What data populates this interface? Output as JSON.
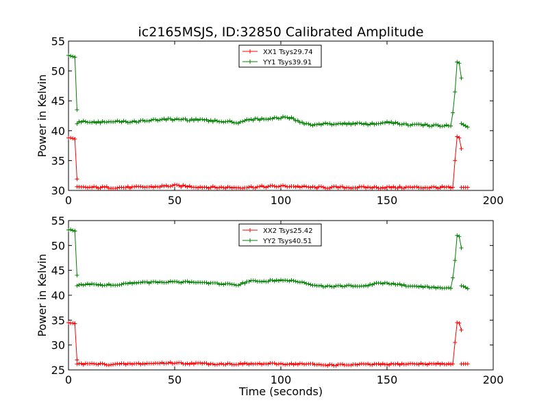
{
  "figure": {
    "title": "ic2165MSJS, ID:32850 Calibrated Amplitude"
  },
  "chart_data": [
    {
      "type": "line",
      "title": "ic2165MSJS, ID:32850 Calibrated Amplitude",
      "xlabel": "",
      "ylabel": "Power in Kelvin",
      "xlim": [
        0,
        200
      ],
      "ylim": [
        30,
        55
      ],
      "xticks": [
        0,
        50,
        100,
        150,
        200
      ],
      "yticks": [
        30,
        35,
        40,
        45,
        50,
        55
      ],
      "grid": false,
      "legend_position": "top-center",
      "marker": "plus",
      "sample_interval_s": 1,
      "series": [
        {
          "name": "XX1 Tsys29.74",
          "color": "#ff0000",
          "segments": [
            {
              "x": [
                0,
                1,
                2,
                3
              ],
              "y": [
                38.8,
                38.8,
                38.7,
                38.6
              ]
            },
            {
              "x": [
                3,
                4
              ],
              "y": [
                38.6,
                31.9
              ]
            },
            {
              "x": [
                4,
                12,
                20,
                30,
                40,
                50,
                55,
                60,
                70,
                80,
                90,
                100,
                105,
                110,
                115,
                120,
                130,
                140,
                150,
                160,
                170,
                180
              ],
              "y": [
                30.5,
                30.5,
                30.5,
                30.5,
                30.6,
                30.8,
                30.7,
                30.6,
                30.5,
                30.5,
                30.6,
                30.7,
                30.7,
                30.6,
                30.5,
                30.5,
                30.5,
                30.5,
                30.5,
                30.5,
                30.5,
                30.5
              ]
            },
            {
              "x": [
                180,
                181,
                182,
                183,
                184,
                185
              ],
              "y": [
                30.4,
                30.5,
                35.0,
                39.0,
                38.8,
                37.0
              ]
            },
            {
              "x": [
                185,
                186,
                187,
                188
              ],
              "y": [
                30.5,
                30.5,
                30.5,
                30.5
              ]
            }
          ]
        },
        {
          "name": "YY1 Tsys39.91",
          "color": "#008000",
          "segments": [
            {
              "x": [
                0,
                1,
                2,
                3
              ],
              "y": [
                52.6,
                52.5,
                52.4,
                52.3
              ]
            },
            {
              "x": [
                3,
                4
              ],
              "y": [
                52.3,
                43.5
              ]
            },
            {
              "x": [
                4,
                8,
                15,
                20,
                30,
                40,
                50,
                60,
                70,
                80,
                85,
                90,
                100,
                105,
                110,
                115,
                120,
                130,
                140,
                145,
                150,
                160,
                170,
                180
              ],
              "y": [
                41.3,
                41.6,
                41.4,
                41.5,
                41.5,
                41.8,
                41.9,
                41.8,
                41.6,
                41.4,
                41.9,
                41.9,
                42.2,
                42.1,
                41.3,
                41.0,
                41.1,
                41.2,
                41.1,
                41.2,
                41.4,
                41.0,
                40.9,
                40.8
              ]
            },
            {
              "x": [
                180,
                181,
                182,
                183,
                184,
                185
              ],
              "y": [
                40.8,
                43.0,
                46.5,
                51.5,
                51.3,
                48.8
              ]
            },
            {
              "x": [
                185,
                186,
                187,
                188
              ],
              "y": [
                41.2,
                41.0,
                40.8,
                40.6
              ]
            }
          ]
        }
      ]
    },
    {
      "type": "line",
      "title": "",
      "xlabel": "Time (seconds)",
      "ylabel": "Power in Kelvin",
      "xlim": [
        0,
        200
      ],
      "ylim": [
        25,
        55
      ],
      "xticks": [
        0,
        50,
        100,
        150,
        200
      ],
      "yticks": [
        25,
        30,
        35,
        40,
        45,
        50,
        55
      ],
      "grid": false,
      "legend_position": "top-center",
      "marker": "plus",
      "sample_interval_s": 1,
      "series": [
        {
          "name": "XX2 Tsys25.42",
          "color": "#ff0000",
          "segments": [
            {
              "x": [
                0,
                1,
                2,
                3
              ],
              "y": [
                34.5,
                34.4,
                34.4,
                34.3
              ]
            },
            {
              "x": [
                3,
                4
              ],
              "y": [
                34.3,
                27.0
              ]
            },
            {
              "x": [
                4,
                12,
                20,
                30,
                40,
                45,
                50,
                55,
                60,
                70,
                80,
                90,
                100,
                110,
                120,
                130,
                140,
                150,
                160,
                170,
                180
              ],
              "y": [
                26.2,
                26.2,
                26.1,
                26.2,
                26.3,
                26.4,
                26.4,
                26.3,
                26.3,
                26.2,
                26.2,
                26.2,
                26.2,
                26.2,
                26.0,
                26.0,
                26.1,
                26.1,
                26.2,
                26.2,
                26.2
              ]
            },
            {
              "x": [
                180,
                181,
                182,
                183,
                184,
                185
              ],
              "y": [
                26.1,
                26.2,
                30.5,
                34.5,
                34.4,
                33.0
              ]
            },
            {
              "x": [
                185,
                186,
                187,
                188
              ],
              "y": [
                26.2,
                26.2,
                26.2,
                26.2
              ]
            }
          ]
        },
        {
          "name": "YY2 Tsys40.51",
          "color": "#008000",
          "segments": [
            {
              "x": [
                0,
                1,
                2,
                3
              ],
              "y": [
                53.1,
                53.2,
                53.0,
                52.9
              ]
            },
            {
              "x": [
                3,
                4
              ],
              "y": [
                52.9,
                44.0
              ]
            },
            {
              "x": [
                4,
                8,
                15,
                20,
                30,
                40,
                50,
                60,
                70,
                80,
                85,
                90,
                100,
                105,
                110,
                115,
                120,
                130,
                140,
                145,
                150,
                160,
                170,
                180
              ],
              "y": [
                41.9,
                42.3,
                42.1,
                42.1,
                42.4,
                42.6,
                42.7,
                42.6,
                42.3,
                42.1,
                42.8,
                42.8,
                43.0,
                43.0,
                42.5,
                41.9,
                41.8,
                41.9,
                41.9,
                42.3,
                42.4,
                41.9,
                41.6,
                41.4
              ]
            },
            {
              "x": [
                180,
                181,
                182,
                183,
                184,
                185
              ],
              "y": [
                41.4,
                43.5,
                47.0,
                52.0,
                51.8,
                49.5
              ]
            },
            {
              "x": [
                185,
                186,
                187,
                188
              ],
              "y": [
                41.9,
                41.8,
                41.6,
                41.3
              ]
            }
          ]
        }
      ]
    }
  ]
}
